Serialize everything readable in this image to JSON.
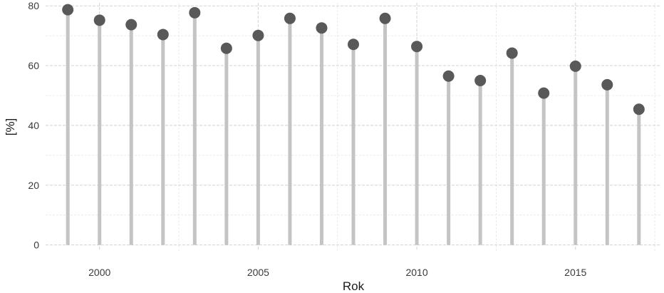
{
  "chart_data": {
    "type": "lollipop",
    "title": "",
    "xlabel": "Rok",
    "ylabel": "[%]",
    "xlim": [
      1998.3,
      2017.7
    ],
    "ylim": [
      -2,
      81
    ],
    "x_ticks": [
      2000,
      2005,
      2010,
      2015
    ],
    "y_ticks": [
      0,
      20,
      40,
      60,
      80
    ],
    "grid": true,
    "legend": "none",
    "colors": {
      "stem": "#c4c4c4",
      "point": "#595959",
      "grid_major": "#d3d3d3",
      "grid_minor": "#e6e6e6",
      "text": "#3a3a3a"
    },
    "x": [
      1999,
      2000,
      2001,
      2002,
      2003,
      2004,
      2005,
      2006,
      2007,
      2008,
      2009,
      2010,
      2011,
      2012,
      2013,
      2014,
      2015,
      2016,
      2017
    ],
    "values": [
      78.7,
      75.2,
      73.7,
      70.4,
      77.7,
      65.8,
      70.1,
      75.8,
      72.6,
      67.1,
      75.8,
      66.4,
      56.5,
      55.0,
      64.2,
      50.8,
      59.8,
      53.6,
      45.4
    ]
  }
}
